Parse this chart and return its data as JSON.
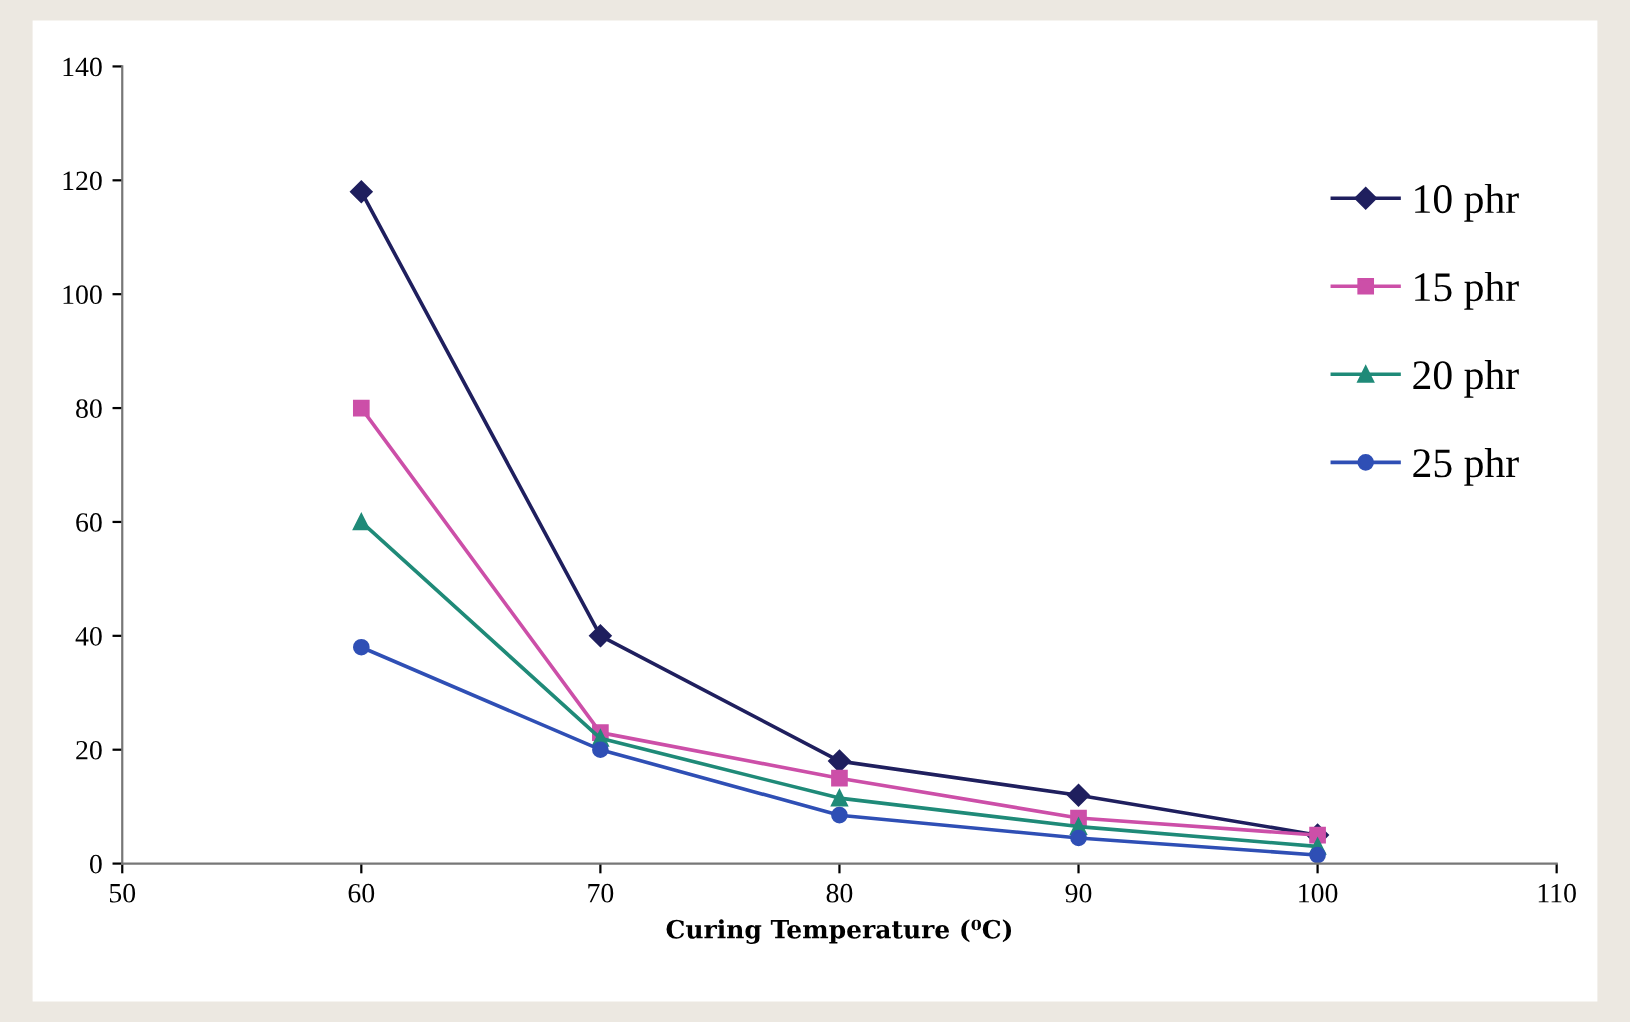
{
  "chart_data": {
    "type": "line",
    "xlabel": "Curing Temperature (⁰C)",
    "x": [
      60,
      70,
      80,
      90,
      100
    ],
    "series": [
      {
        "name": "10 phr",
        "color": "#1f1f5e",
        "marker": "diamond",
        "values": [
          118,
          40,
          18,
          12,
          5
        ]
      },
      {
        "name": "15 phr",
        "color": "#cc4fa8",
        "marker": "square",
        "values": [
          80,
          23,
          15,
          8,
          5
        ]
      },
      {
        "name": "20 phr",
        "color": "#1f8a78",
        "marker": "triangle",
        "values": [
          60,
          22,
          11.5,
          6.5,
          3
        ]
      },
      {
        "name": "25 phr",
        "color": "#2f4fb5",
        "marker": "circle",
        "values": [
          38,
          20,
          8.5,
          4.5,
          1.5
        ]
      }
    ],
    "xlim": [
      50,
      110
    ],
    "xticks": [
      50,
      60,
      70,
      80,
      90,
      100,
      110
    ],
    "ylim": [
      0,
      140
    ],
    "yticks": [
      0,
      20,
      40,
      60,
      80,
      100,
      120,
      140
    ],
    "grid": false,
    "legend": "top right",
    "line_style": "solid"
  }
}
